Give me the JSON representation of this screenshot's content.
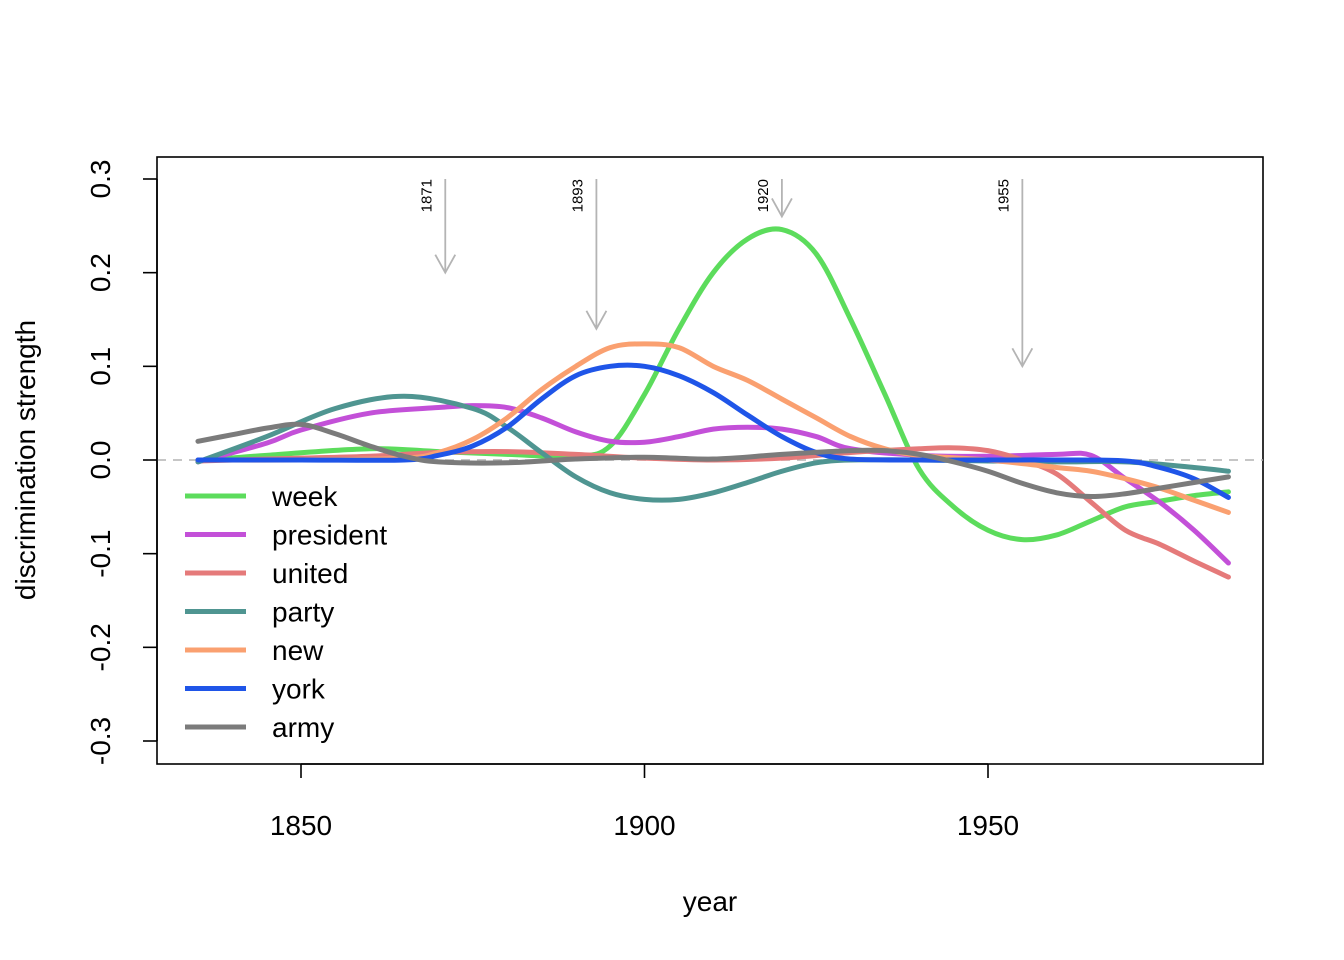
{
  "chart_data": {
    "type": "line",
    "title": "",
    "xlabel": "year",
    "ylabel": "discrimination strength",
    "xlim": [
      1829,
      1990
    ],
    "ylim": [
      -0.32,
      0.33
    ],
    "xticks": [
      1850,
      1900,
      1950
    ],
    "xtick_labels": [
      "1850",
      "1900",
      "1950"
    ],
    "yticks": [
      -0.3,
      -0.2,
      -0.1,
      0.0,
      0.1,
      0.2,
      0.3
    ],
    "ytick_labels": [
      "-0.3",
      "-0.2",
      "-0.1",
      "0.0",
      "0.1",
      "0.2",
      "0.3"
    ],
    "grid": false,
    "zero_line": true,
    "legend_position": "bottom-left",
    "annotations": [
      {
        "label": "1871",
        "x": 1871,
        "y_top": 0.3,
        "y_tip": 0.2
      },
      {
        "label": "1893",
        "x": 1893,
        "y_top": 0.3,
        "y_tip": 0.14
      },
      {
        "label": "1920",
        "x": 1920,
        "y_top": 0.3,
        "y_tip": 0.26
      },
      {
        "label": "1955",
        "x": 1955,
        "y_top": 0.3,
        "y_tip": 0.1
      }
    ],
    "series": [
      {
        "name": "week",
        "color": "#5CDC5C",
        "x": [
          1835,
          1845,
          1860,
          1870,
          1880,
          1890,
          1895,
          1900,
          1905,
          1910,
          1915,
          1920,
          1925,
          1930,
          1935,
          1940,
          1945,
          1950,
          1955,
          1960,
          1965,
          1970,
          1975,
          1980,
          1985
        ],
        "y": [
          -0.001,
          0.005,
          0.012,
          0.009,
          0.006,
          0.004,
          0.015,
          0.07,
          0.14,
          0.2,
          0.236,
          0.246,
          0.22,
          0.15,
          0.07,
          -0.01,
          -0.05,
          -0.075,
          -0.085,
          -0.08,
          -0.065,
          -0.05,
          -0.044,
          -0.038,
          -0.034
        ]
      },
      {
        "name": "president",
        "color": "#C350D8",
        "x": [
          1835,
          1845,
          1850,
          1860,
          1870,
          1875,
          1880,
          1885,
          1890,
          1895,
          1900,
          1905,
          1910,
          1915,
          1920,
          1925,
          1930,
          1940,
          1950,
          1960,
          1965,
          1970,
          1975,
          1980,
          1985
        ],
        "y": [
          -0.002,
          0.018,
          0.032,
          0.05,
          0.056,
          0.058,
          0.056,
          0.045,
          0.03,
          0.02,
          0.019,
          0.025,
          0.033,
          0.035,
          0.033,
          0.025,
          0.012,
          0.005,
          0.004,
          0.006,
          0.005,
          -0.02,
          -0.045,
          -0.075,
          -0.11
        ]
      },
      {
        "name": "united",
        "color": "#E57A7A",
        "x": [
          1835,
          1850,
          1860,
          1870,
          1880,
          1890,
          1900,
          1910,
          1920,
          1930,
          1940,
          1945,
          1950,
          1955,
          1960,
          1965,
          1970,
          1975,
          1980,
          1985
        ],
        "y": [
          -0.001,
          0.002,
          0.004,
          0.008,
          0.009,
          0.006,
          0.002,
          0.0,
          0.002,
          0.008,
          0.012,
          0.013,
          0.01,
          0.0,
          -0.015,
          -0.045,
          -0.075,
          -0.09,
          -0.108,
          -0.125
        ]
      },
      {
        "name": "party",
        "color": "#4F9591",
        "x": [
          1835,
          1845,
          1855,
          1865,
          1875,
          1880,
          1885,
          1890,
          1895,
          1900,
          1905,
          1910,
          1915,
          1920,
          1925,
          1930,
          1940,
          1950,
          1960,
          1970,
          1980,
          1985
        ],
        "y": [
          -0.002,
          0.025,
          0.055,
          0.068,
          0.055,
          0.035,
          0.008,
          -0.018,
          -0.035,
          -0.042,
          -0.042,
          -0.035,
          -0.024,
          -0.012,
          -0.003,
          0.0,
          0.0,
          -0.001,
          -0.002,
          -0.002,
          -0.008,
          -0.012
        ]
      },
      {
        "name": "new",
        "color": "#FAA070",
        "x": [
          1835,
          1850,
          1865,
          1870,
          1875,
          1880,
          1885,
          1890,
          1895,
          1900,
          1905,
          1910,
          1915,
          1920,
          1925,
          1930,
          1935,
          1940,
          1950,
          1960,
          1965,
          1970,
          1975,
          1980,
          1985
        ],
        "y": [
          0.0,
          0.0,
          0.002,
          0.008,
          0.022,
          0.045,
          0.075,
          0.1,
          0.12,
          0.124,
          0.12,
          0.1,
          0.085,
          0.065,
          0.045,
          0.025,
          0.012,
          0.005,
          0.0,
          -0.008,
          -0.012,
          -0.02,
          -0.03,
          -0.043,
          -0.056
        ]
      },
      {
        "name": "york",
        "color": "#1F55E8",
        "x": [
          1835,
          1850,
          1865,
          1870,
          1875,
          1880,
          1885,
          1890,
          1895,
          1900,
          1905,
          1910,
          1915,
          1920,
          1925,
          1930,
          1940,
          1950,
          1960,
          1970,
          1975,
          1980,
          1985
        ],
        "y": [
          0.0,
          0.0,
          0.0,
          0.005,
          0.015,
          0.035,
          0.065,
          0.09,
          0.1,
          0.1,
          0.09,
          0.072,
          0.048,
          0.025,
          0.008,
          0.001,
          0.0,
          0.0,
          0.0,
          -0.001,
          -0.008,
          -0.02,
          -0.04
        ]
      },
      {
        "name": "army",
        "color": "#7B7B7B",
        "x": [
          1835,
          1840,
          1845,
          1850,
          1855,
          1860,
          1865,
          1870,
          1880,
          1890,
          1900,
          1910,
          1920,
          1930,
          1935,
          1940,
          1945,
          1950,
          1955,
          1960,
          1965,
          1970,
          1975,
          1980,
          1985
        ],
        "y": [
          0.02,
          0.027,
          0.034,
          0.038,
          0.028,
          0.015,
          0.004,
          -0.002,
          -0.003,
          0.001,
          0.003,
          0.001,
          0.006,
          0.01,
          0.01,
          0.006,
          -0.002,
          -0.012,
          -0.025,
          -0.035,
          -0.039,
          -0.036,
          -0.03,
          -0.024,
          -0.018
        ]
      }
    ]
  }
}
